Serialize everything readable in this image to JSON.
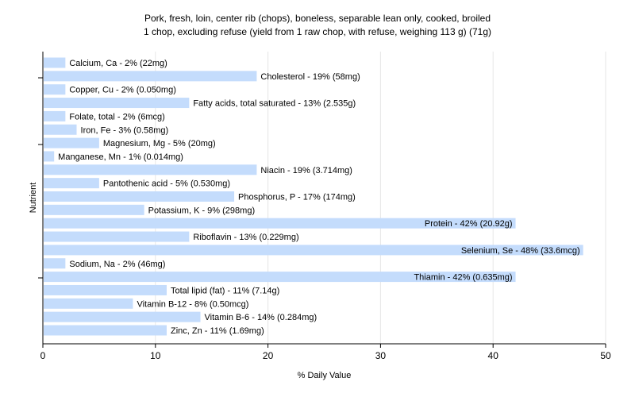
{
  "chart_data": {
    "type": "bar",
    "orientation": "horizontal",
    "title": "Pork, fresh, loin, center rib (chops), boneless, separable lean only, cooked, broiled",
    "subtitle": "1 chop, excluding refuse (yield from 1 raw chop, with refuse, weighing 113 g) (71g)",
    "xlabel": "% Daily Value",
    "ylabel": "Nutrient",
    "xlim": [
      0,
      50
    ],
    "xticks": [
      0,
      10,
      20,
      30,
      40,
      50
    ],
    "grid": true,
    "legend": "none",
    "bar_color": "#c4dcfc",
    "grid_color": "#e6e6e6",
    "categories": [
      "Calcium, Ca",
      "Cholesterol",
      "Copper, Cu",
      "Fatty acids, total saturated",
      "Folate, total",
      "Iron, Fe",
      "Magnesium, Mg",
      "Manganese, Mn",
      "Niacin",
      "Pantothenic acid",
      "Phosphorus, P",
      "Potassium, K",
      "Protein",
      "Riboflavin",
      "Selenium, Se",
      "Sodium, Na",
      "Thiamin",
      "Total lipid (fat)",
      "Vitamin B-12",
      "Vitamin B-6",
      "Zinc, Zn"
    ],
    "values": [
      2,
      19,
      2,
      13,
      2,
      3,
      5,
      1,
      19,
      5,
      17,
      9,
      42,
      13,
      48,
      2,
      42,
      11,
      8,
      14,
      11
    ],
    "labels": [
      "Calcium, Ca - 2% (22mg)",
      "Cholesterol - 19% (58mg)",
      "Copper, Cu - 2% (0.050mg)",
      "Fatty acids, total saturated - 13% (2.535g)",
      "Folate, total - 2% (6mcg)",
      "Iron, Fe - 3% (0.58mg)",
      "Magnesium, Mg - 5% (20mg)",
      "Manganese, Mn - 1% (0.014mg)",
      "Niacin - 19% (3.714mg)",
      "Pantothenic acid - 5% (0.530mg)",
      "Phosphorus, P - 17% (174mg)",
      "Potassium, K - 9% (298mg)",
      "Protein - 42% (20.92g)",
      "Riboflavin - 13% (0.229mg)",
      "Selenium, Se - 48% (33.6mcg)",
      "Sodium, Na - 2% (46mg)",
      "Thiamin - 42% (0.635mg)",
      "Total lipid (fat) - 11% (7.14g)",
      "Vitamin B-12 - 8% (0.50mcg)",
      "Vitamin B-6 - 14% (0.284mg)",
      "Zinc, Zn - 11% (1.69mg)"
    ]
  }
}
